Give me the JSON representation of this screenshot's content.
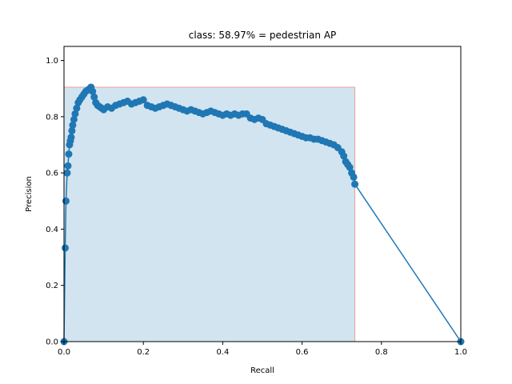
{
  "chart_data": {
    "type": "line",
    "title": "class: 58.97% = pedestrian AP",
    "xlabel": "Recall",
    "ylabel": "Precision",
    "xlim": [
      0.0,
      1.0
    ],
    "ylim": [
      0.0,
      1.05
    ],
    "xticks": [
      "0.0",
      "0.2",
      "0.4",
      "0.6",
      "0.8",
      "1.0"
    ],
    "yticks": [
      "0.0",
      "0.2",
      "0.4",
      "0.6",
      "0.8",
      "1.0"
    ],
    "grid": false,
    "legend": "none",
    "series": [
      {
        "role": "precision-recall curve",
        "color": "#1f77b4",
        "marker": "circle",
        "x": [
          0.0,
          0.003,
          0.005,
          0.008,
          0.01,
          0.012,
          0.014,
          0.016,
          0.018,
          0.02,
          0.022,
          0.025,
          0.028,
          0.032,
          0.036,
          0.04,
          0.045,
          0.05,
          0.055,
          0.06,
          0.065,
          0.068,
          0.072,
          0.076,
          0.08,
          0.085,
          0.09,
          0.095,
          0.1,
          0.11,
          0.12,
          0.13,
          0.14,
          0.15,
          0.16,
          0.17,
          0.18,
          0.19,
          0.2,
          0.21,
          0.22,
          0.23,
          0.24,
          0.25,
          0.26,
          0.27,
          0.28,
          0.29,
          0.3,
          0.31,
          0.32,
          0.33,
          0.34,
          0.35,
          0.36,
          0.37,
          0.38,
          0.39,
          0.4,
          0.41,
          0.42,
          0.43,
          0.44,
          0.45,
          0.46,
          0.47,
          0.48,
          0.49,
          0.5,
          0.51,
          0.52,
          0.53,
          0.54,
          0.55,
          0.56,
          0.57,
          0.58,
          0.59,
          0.6,
          0.61,
          0.62,
          0.63,
          0.64,
          0.65,
          0.66,
          0.67,
          0.68,
          0.69,
          0.7,
          0.705,
          0.71,
          0.715,
          0.72,
          0.725,
          0.73,
          0.733,
          1.0
        ],
        "y": [
          0.0,
          0.333,
          0.5,
          0.6,
          0.625,
          0.667,
          0.7,
          0.714,
          0.727,
          0.75,
          0.77,
          0.79,
          0.81,
          0.83,
          0.85,
          0.86,
          0.87,
          0.88,
          0.89,
          0.895,
          0.9,
          0.905,
          0.89,
          0.87,
          0.85,
          0.84,
          0.835,
          0.83,
          0.825,
          0.835,
          0.83,
          0.84,
          0.845,
          0.85,
          0.855,
          0.845,
          0.85,
          0.855,
          0.86,
          0.84,
          0.835,
          0.83,
          0.835,
          0.84,
          0.845,
          0.84,
          0.835,
          0.83,
          0.825,
          0.82,
          0.825,
          0.82,
          0.815,
          0.81,
          0.815,
          0.82,
          0.815,
          0.81,
          0.805,
          0.81,
          0.805,
          0.81,
          0.805,
          0.81,
          0.81,
          0.795,
          0.79,
          0.795,
          0.79,
          0.775,
          0.77,
          0.765,
          0.76,
          0.755,
          0.75,
          0.745,
          0.74,
          0.735,
          0.73,
          0.725,
          0.725,
          0.72,
          0.72,
          0.715,
          0.71,
          0.705,
          0.7,
          0.69,
          0.675,
          0.66,
          0.64,
          0.63,
          0.62,
          0.6,
          0.585,
          0.56,
          0.0
        ]
      }
    ],
    "fill": {
      "role": "interpolated precision area",
      "fill_color": "#1f77b4",
      "fill_opacity": 0.2,
      "edge_color": "#e8a0a0",
      "x": [
        0.0,
        0.0,
        0.068,
        0.068,
        0.733,
        0.733
      ],
      "y": [
        0.0,
        0.905,
        0.905,
        0.905,
        0.905,
        0.0
      ]
    }
  }
}
